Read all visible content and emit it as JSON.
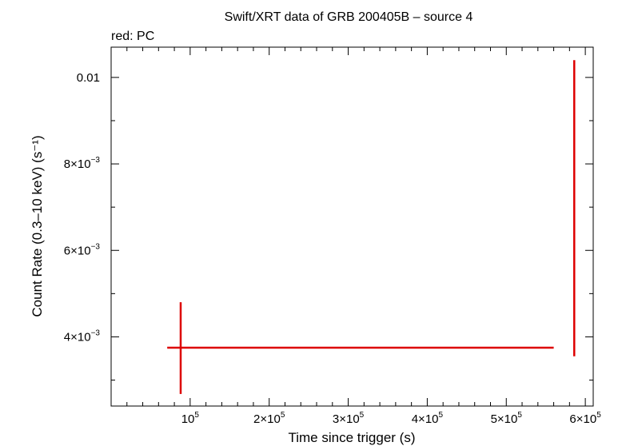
{
  "chart_data": {
    "type": "scatter",
    "title": "Swift/XRT data of GRB 200405B – source 4",
    "subtitle": "red: PC",
    "xlabel": "Time since trigger (s)",
    "ylabel": "Count Rate (0.3–10 keV) (s⁻¹)",
    "xlim": [
      0,
      610000
    ],
    "ylim": [
      0.0024,
      0.0107
    ],
    "grid": false,
    "legend": "none",
    "series": [
      {
        "color": "#dd0000",
        "points": [
          {
            "x": 88000,
            "xerr_lo": 17000,
            "xerr_hi": 472000,
            "y": 0.00375,
            "yerr_lo": 0.00107,
            "yerr_hi": 0.00105
          },
          {
            "x": 586000,
            "xerr_lo": 1000,
            "xerr_hi": 1000,
            "y": 0.0064,
            "yerr_lo": 0.00285,
            "yerr_hi": 0.004
          }
        ]
      }
    ],
    "x_ticks": [
      {
        "value": 100000,
        "mant": "",
        "exp": "5"
      },
      {
        "value": 200000,
        "mant": "2",
        "exp": "5"
      },
      {
        "value": 300000,
        "mant": "3",
        "exp": "5"
      },
      {
        "value": 400000,
        "mant": "4",
        "exp": "5"
      },
      {
        "value": 500000,
        "mant": "5",
        "exp": "5"
      },
      {
        "value": 600000,
        "mant": "6",
        "exp": "5"
      }
    ],
    "y_ticks": [
      {
        "value": 0.004,
        "mant": "4",
        "exp": "−3"
      },
      {
        "value": 0.006,
        "mant": "6",
        "exp": "−3"
      },
      {
        "value": 0.008,
        "mant": "8",
        "exp": "−3"
      },
      {
        "value": 0.01,
        "plain": "0.01"
      }
    ]
  }
}
